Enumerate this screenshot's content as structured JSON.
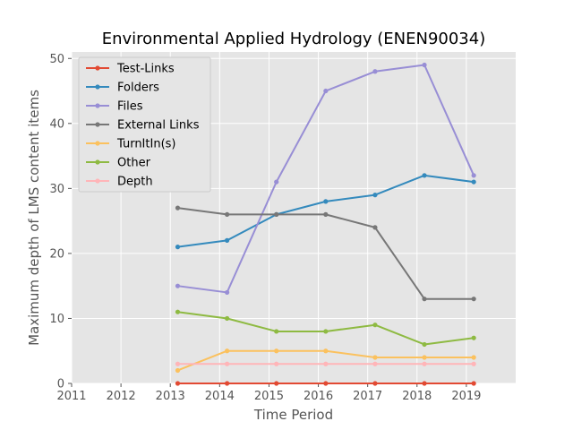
{
  "chart_data": {
    "type": "line",
    "title": "Environmental Applied Hydrology (ENEN90034)",
    "xlabel": "Time Period",
    "ylabel": "Maximum depth of LMS content items",
    "xlim": [
      2011,
      2020
    ],
    "ylim": [
      0,
      51
    ],
    "x_ticks": [
      "2011",
      "2012",
      "2013",
      "2014",
      "2015",
      "2016",
      "2017",
      "2018",
      "2019"
    ],
    "y_ticks": [
      "0",
      "10",
      "20",
      "30",
      "40",
      "50"
    ],
    "grid": true,
    "legend_position": "top-left",
    "x": [
      2013.15,
      2014.15,
      2015.15,
      2016.15,
      2017.15,
      2018.15,
      2019.15
    ],
    "series": [
      {
        "name": "Test-Links",
        "color": "#E24A33",
        "values": [
          0,
          0,
          0,
          0,
          0,
          0,
          0
        ]
      },
      {
        "name": "Folders",
        "color": "#348ABD",
        "values": [
          21,
          22,
          26,
          28,
          29,
          32,
          31
        ]
      },
      {
        "name": "Files",
        "color": "#988ED5",
        "values": [
          15,
          14,
          31,
          45,
          48,
          49,
          32
        ]
      },
      {
        "name": "External Links",
        "color": "#777777",
        "values": [
          27,
          26,
          26,
          26,
          24,
          13,
          13
        ]
      },
      {
        "name": "TurnItIn(s)",
        "color": "#FBC15E",
        "values": [
          2,
          5,
          5,
          5,
          4,
          4,
          4
        ]
      },
      {
        "name": "Other",
        "color": "#8EBA42",
        "values": [
          11,
          10,
          8,
          8,
          9,
          6,
          7
        ]
      },
      {
        "name": "Depth",
        "color": "#FFB5B8",
        "values": [
          3,
          3,
          3,
          3,
          3,
          3,
          3
        ]
      }
    ]
  }
}
